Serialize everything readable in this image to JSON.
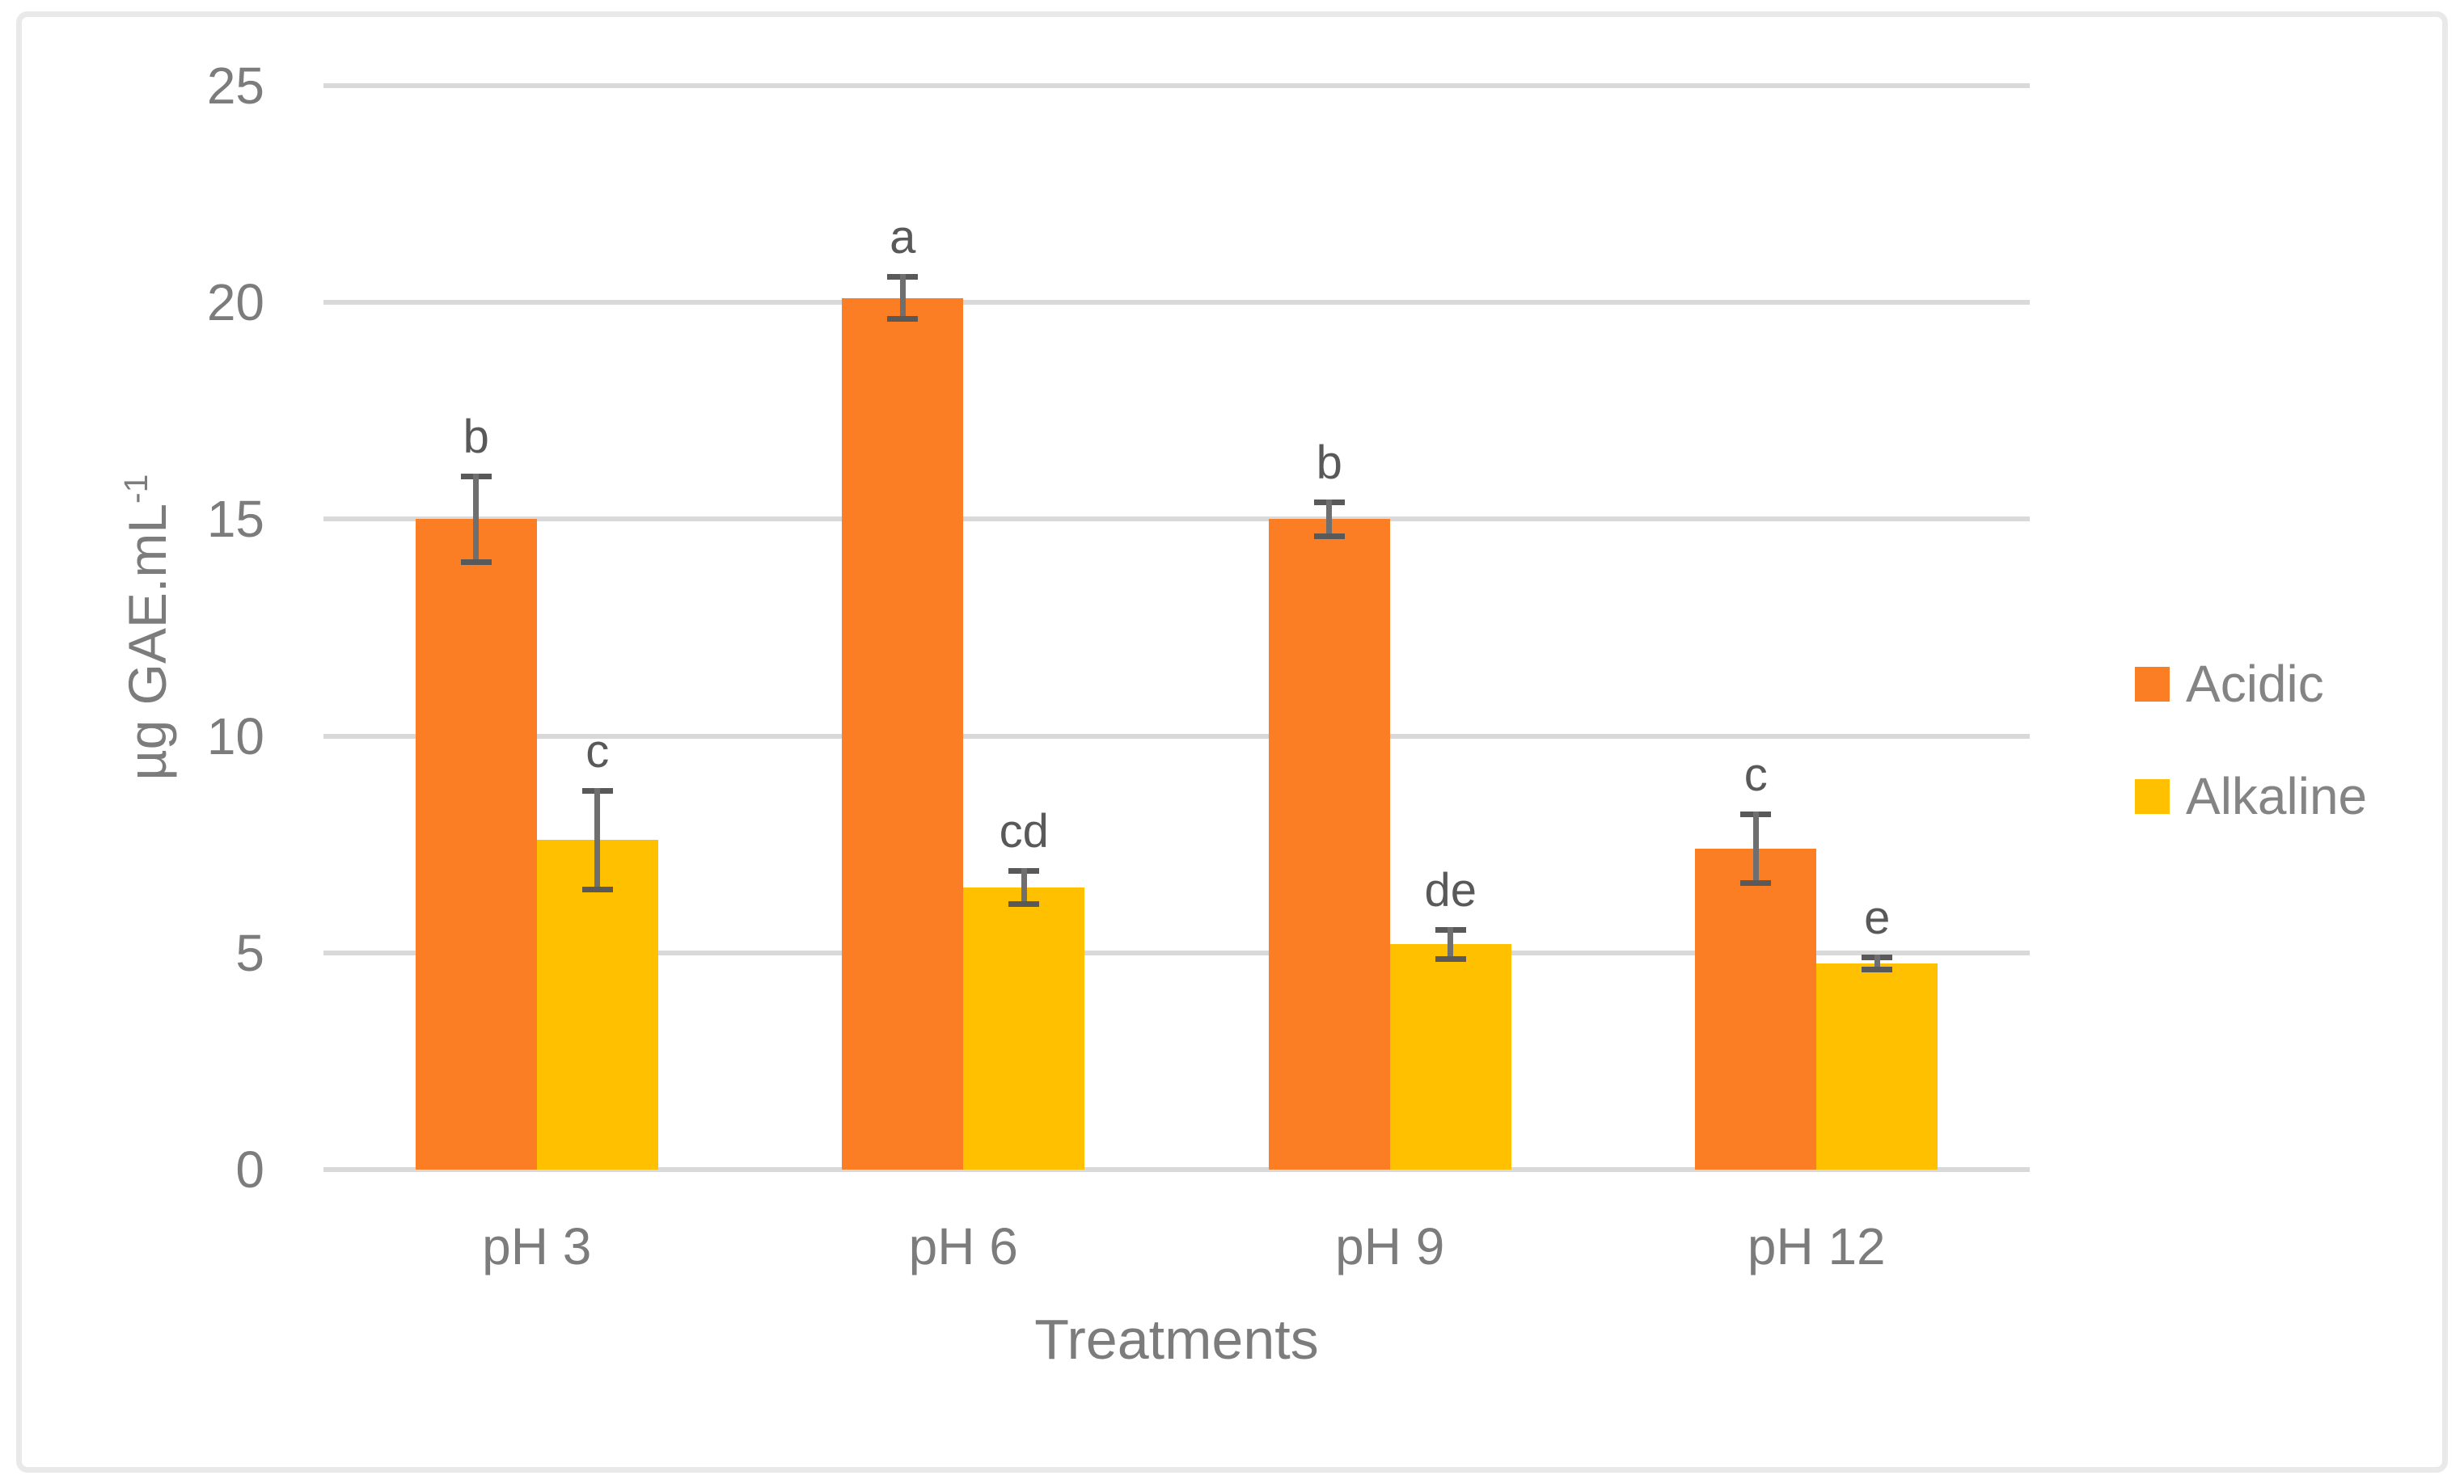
{
  "chart_data": {
    "type": "bar",
    "title": "",
    "categories": [
      "pH 3",
      "pH 6",
      "pH 9",
      "pH 12"
    ],
    "series": [
      {
        "name": "Acidic",
        "color": "#fb7d24",
        "values": [
          15.0,
          20.1,
          15.0,
          7.4
        ],
        "errors": [
          1.05,
          0.55,
          0.45,
          0.85
        ],
        "letters": [
          "b",
          "a",
          "b",
          "c"
        ]
      },
      {
        "name": "Alkaline",
        "color": "#ffc000",
        "values": [
          7.6,
          6.5,
          5.2,
          4.75
        ],
        "errors": [
          1.2,
          0.45,
          0.4,
          0.2
        ],
        "letters": [
          "c",
          "cd",
          "de",
          "e"
        ]
      }
    ],
    "xlabel": "Treatments",
    "ylabel": "µg GAE.mL⁻¹",
    "ylabel_parts": {
      "base": "µg GAE.mL",
      "sup": "-1"
    },
    "ylim": [
      0,
      25
    ],
    "yticks": [
      25,
      20,
      15,
      10,
      5,
      0
    ],
    "ytick_interval": 5,
    "grid": true,
    "legend_position": "right",
    "style": {
      "gridline_color": "#d9d9d9",
      "axis_text_color": "#7c7c7c",
      "annotation_color": "#595959",
      "error_bar_color": "#595959",
      "frame_border_color": "#e9e9e9",
      "background_color": "#ffffff"
    }
  }
}
